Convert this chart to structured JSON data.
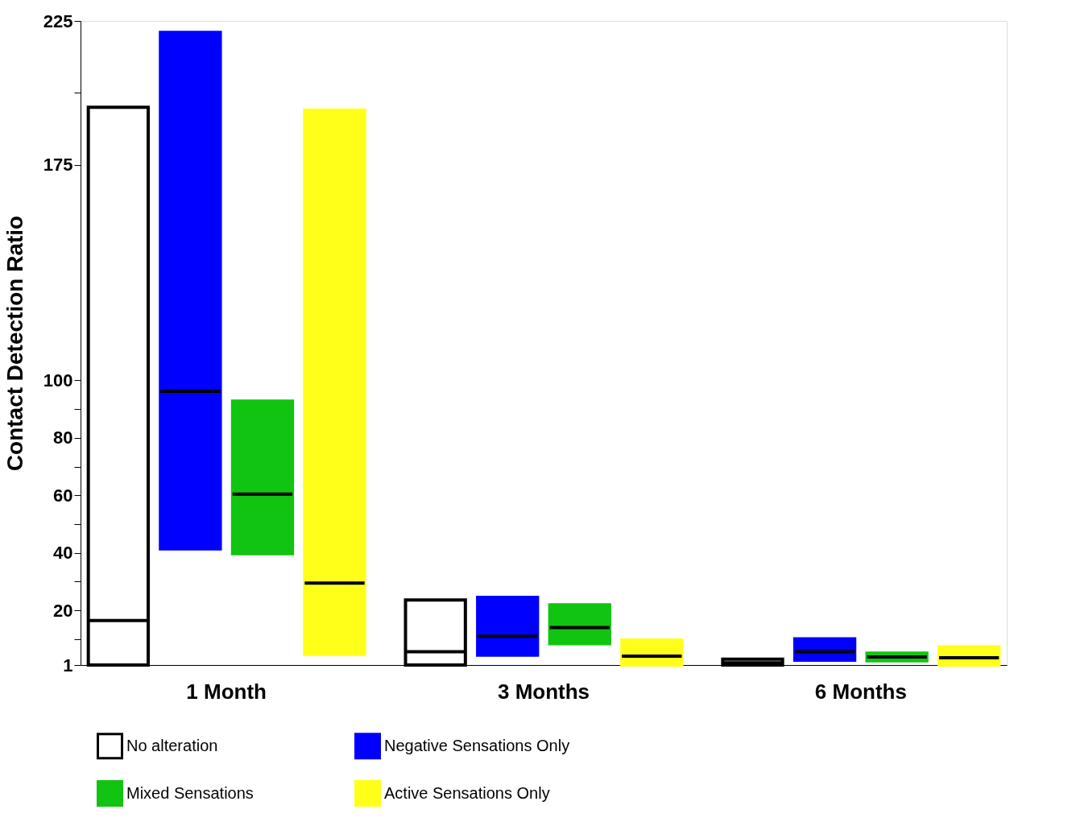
{
  "chart_data": {
    "type": "box",
    "ylabel": "Contact Detection Ratio",
    "categories": [
      "1 Month",
      "3 Months",
      "6 Months"
    ],
    "ylim": [
      1,
      225
    ],
    "yticks": [
      1,
      20,
      40,
      60,
      80,
      100,
      175,
      225,
      {
        "value": 10,
        "label": null
      },
      {
        "value": 30,
        "label": null
      },
      {
        "value": 50,
        "label": null
      },
      {
        "value": 70,
        "label": null
      },
      {
        "value": 90,
        "label": null
      },
      {
        "value": 200,
        "label": null
      }
    ],
    "series": [
      {
        "name": "No alteration",
        "color": "#ffffff",
        "boxes": [
          {
            "low": 1,
            "q1": 1,
            "median": 16.5,
            "q3": 195,
            "high": 195
          },
          {
            "low": 1,
            "q1": 1,
            "median": 5.6,
            "q3": 23.6,
            "high": 23.6
          },
          {
            "low": 1,
            "q1": 1,
            "median": 1.8,
            "q3": 3,
            "high": 3
          }
        ]
      },
      {
        "name": "Negative Sensations Only",
        "color": "#0000ff",
        "boxes": [
          {
            "low": 41.4,
            "q1": 41.4,
            "median": 96.2,
            "q3": 221,
            "high": 221
          },
          {
            "low": 4.4,
            "q1": 4.4,
            "median": 11,
            "q3": 24.5,
            "high": 24.5
          },
          {
            "low": 2.7,
            "q1": 2.7,
            "median": 5.6,
            "q3": 10.1,
            "high": 10.1
          }
        ]
      },
      {
        "name": "Mixed Sensations",
        "color": "#11c411",
        "boxes": [
          {
            "low": 39.7,
            "q1": 39.7,
            "median": 60.4,
            "q3": 92.8,
            "high": 92.8
          },
          {
            "low": 8.4,
            "q1": 8.4,
            "median": 14,
            "q3": 21.9,
            "high": 21.9
          },
          {
            "low": 2.5,
            "q1": 2.5,
            "median": 3.8,
            "q3": 5.1,
            "high": 5.1
          }
        ]
      },
      {
        "name": "Active Sensations Only",
        "color": "#ffff1a",
        "boxes": [
          {
            "low": 4.7,
            "q1": 4.7,
            "median": 29.5,
            "q3": 194,
            "high": 194
          },
          {
            "low": 1,
            "q1": 1,
            "median": 4.1,
            "q3": 9.7,
            "high": 9.7
          },
          {
            "low": 1,
            "q1": 1,
            "median": 3.5,
            "q3": 7.3,
            "high": 7.3
          }
        ]
      }
    ],
    "legend": "bottom",
    "grid": false
  }
}
